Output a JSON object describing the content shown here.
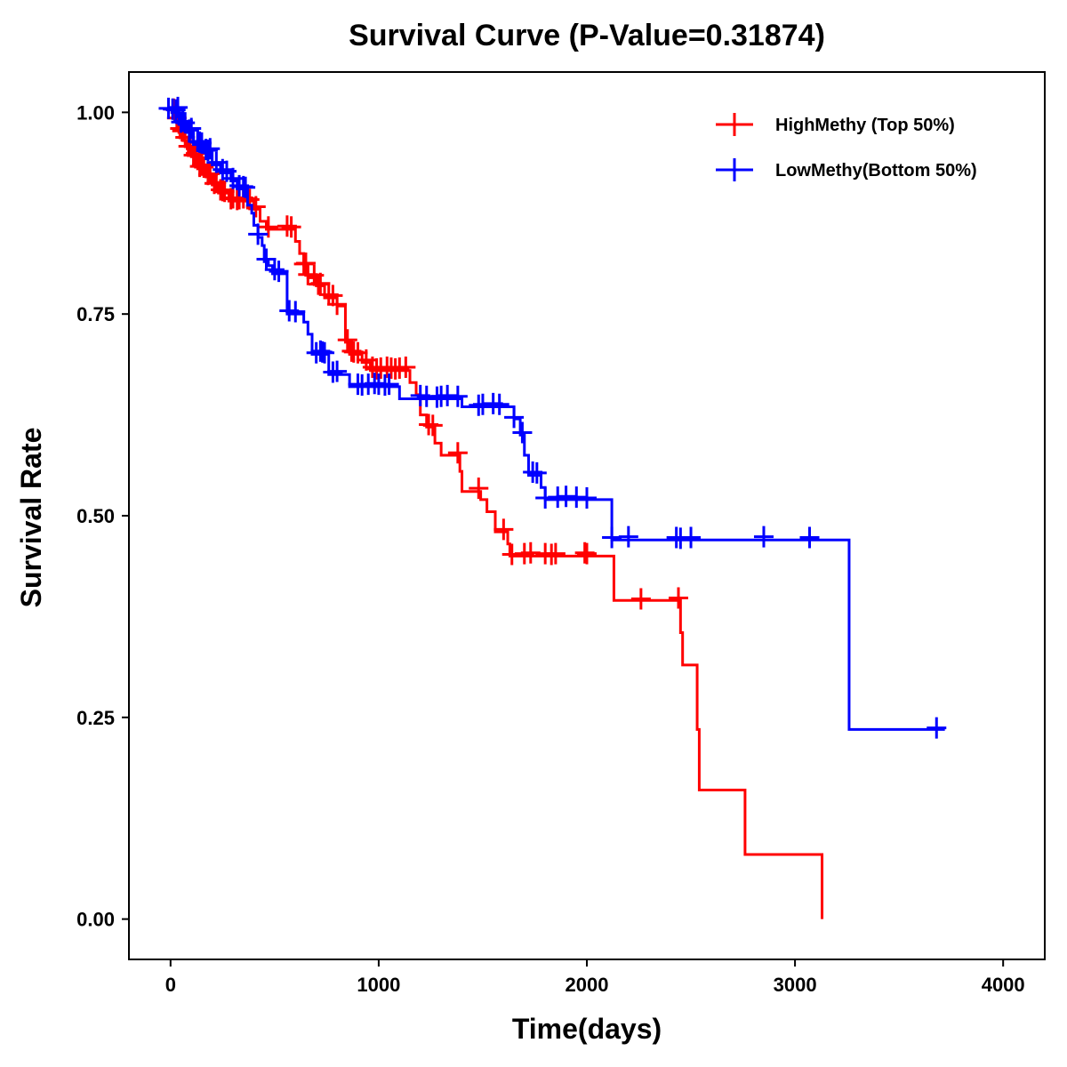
{
  "chart_data": {
    "type": "line",
    "subtype": "kaplan-meier step",
    "title": "Survival Curve (P-Value=0.31874)",
    "xlabel": "Time(days)",
    "ylabel": "Survival Rate",
    "xlim": [
      -200,
      4200
    ],
    "ylim": [
      -0.05,
      1.05
    ],
    "x_ticks": [
      0,
      1000,
      2000,
      3000,
      4000
    ],
    "x_tick_labels": [
      "0",
      "1000",
      "2000",
      "3000",
      "4000"
    ],
    "y_ticks": [
      0,
      0.25,
      0.5,
      0.75,
      1.0
    ],
    "y_tick_labels": [
      "0.00",
      "0.25",
      "0.50",
      "0.75",
      "1.00"
    ],
    "grid": false,
    "legend_position": "top-right",
    "series": [
      {
        "name": "HighMethy (Top 50%)",
        "color": "#ff0000",
        "steps": [
          [
            0,
            1.0
          ],
          [
            20,
            0.99
          ],
          [
            40,
            0.975
          ],
          [
            60,
            0.965
          ],
          [
            80,
            0.955
          ],
          [
            100,
            0.945
          ],
          [
            130,
            0.93
          ],
          [
            170,
            0.92
          ],
          [
            200,
            0.91
          ],
          [
            230,
            0.9
          ],
          [
            280,
            0.89
          ],
          [
            400,
            0.88
          ],
          [
            430,
            0.865
          ],
          [
            460,
            0.855
          ],
          [
            600,
            0.84
          ],
          [
            620,
            0.825
          ],
          [
            640,
            0.81
          ],
          [
            660,
            0.795
          ],
          [
            700,
            0.785
          ],
          [
            740,
            0.77
          ],
          [
            800,
            0.76
          ],
          [
            840,
            0.715
          ],
          [
            860,
            0.7
          ],
          [
            920,
            0.69
          ],
          [
            960,
            0.68
          ],
          [
            1150,
            0.665
          ],
          [
            1180,
            0.65
          ],
          [
            1200,
            0.625
          ],
          [
            1230,
            0.61
          ],
          [
            1270,
            0.59
          ],
          [
            1300,
            0.575
          ],
          [
            1390,
            0.555
          ],
          [
            1400,
            0.53
          ],
          [
            1490,
            0.52
          ],
          [
            1520,
            0.505
          ],
          [
            1560,
            0.48
          ],
          [
            1620,
            0.465
          ],
          [
            1630,
            0.45
          ],
          [
            2130,
            0.395
          ],
          [
            2450,
            0.355
          ],
          [
            2460,
            0.315
          ],
          [
            2530,
            0.235
          ],
          [
            2540,
            0.16
          ],
          [
            2760,
            0.08
          ],
          [
            3130,
            0.0
          ]
        ],
        "end_x": 3130,
        "censor_x": [
          15,
          30,
          45,
          55,
          70,
          85,
          95,
          110,
          120,
          140,
          150,
          160,
          180,
          190,
          210,
          220,
          240,
          250,
          260,
          290,
          300,
          320,
          330,
          350,
          370,
          380,
          410,
          470,
          560,
          580,
          640,
          650,
          660,
          690,
          710,
          720,
          760,
          780,
          800,
          850,
          870,
          880,
          900,
          940,
          970,
          990,
          1010,
          1040,
          1060,
          1080,
          1100,
          1130,
          1240,
          1260,
          1380,
          1480,
          1600,
          1640,
          1700,
          1730,
          1800,
          1830,
          1850,
          1990,
          2000,
          2260,
          2440
        ],
        "censor_pad": [
          0.004,
          0.003,
          0.005,
          0.002,
          0.004,
          0.003,
          0.003,
          0.002,
          0.004,
          0.003,
          0.005,
          0.002,
          0.003,
          0.004,
          0.002,
          0.003,
          0.004,
          0.003,
          0.002,
          0.003,
          0.004,
          0.002,
          0.003,
          0.004,
          0.003,
          0.002,
          0.003,
          0.003,
          0.004,
          0.003,
          0.002,
          0.003,
          0.004,
          0.003,
          0.002,
          0.003,
          0.004,
          0.003,
          0.002,
          0.003,
          0.004,
          0.003,
          0.002,
          0.003,
          0.004,
          0.002,
          0.003,
          0.004,
          0.003,
          0.002,
          0.003,
          0.004,
          0.003,
          0.002,
          0.003,
          0.004,
          0.003,
          0.002,
          0.003,
          0.004,
          0.003,
          0.002,
          0.003,
          0.004,
          0.003,
          0.002,
          0.003
        ]
      },
      {
        "name": "LowMethy(Bottom 50%)",
        "color": "#0000ff",
        "steps": [
          [
            0,
            1.0
          ],
          [
            40,
            0.985
          ],
          [
            80,
            0.975
          ],
          [
            110,
            0.96
          ],
          [
            160,
            0.95
          ],
          [
            200,
            0.935
          ],
          [
            240,
            0.925
          ],
          [
            290,
            0.915
          ],
          [
            320,
            0.905
          ],
          [
            370,
            0.885
          ],
          [
            390,
            0.875
          ],
          [
            400,
            0.86
          ],
          [
            420,
            0.845
          ],
          [
            440,
            0.835
          ],
          [
            450,
            0.815
          ],
          [
            470,
            0.81
          ],
          [
            490,
            0.8
          ],
          [
            560,
            0.75
          ],
          [
            640,
            0.74
          ],
          [
            660,
            0.725
          ],
          [
            680,
            0.7
          ],
          [
            760,
            0.675
          ],
          [
            860,
            0.66
          ],
          [
            1100,
            0.645
          ],
          [
            1400,
            0.635
          ],
          [
            1650,
            0.62
          ],
          [
            1680,
            0.6
          ],
          [
            1700,
            0.575
          ],
          [
            1720,
            0.55
          ],
          [
            1780,
            0.535
          ],
          [
            1800,
            0.52
          ],
          [
            2120,
            0.47
          ],
          [
            3260,
            0.235
          ]
        ],
        "end_x": 3720,
        "censor_x": [
          -10,
          10,
          25,
          35,
          50,
          60,
          70,
          90,
          100,
          130,
          140,
          150,
          170,
          180,
          190,
          220,
          250,
          270,
          300,
          330,
          350,
          360,
          420,
          460,
          500,
          520,
          570,
          600,
          700,
          720,
          730,
          740,
          780,
          800,
          900,
          920,
          950,
          980,
          1000,
          1030,
          1050,
          1200,
          1230,
          1280,
          1300,
          1330,
          1380,
          1480,
          1500,
          1550,
          1580,
          1650,
          1690,
          1740,
          1760,
          1800,
          1860,
          1900,
          1950,
          2000,
          2120,
          2200,
          2430,
          2450,
          2500,
          2850,
          3070,
          3680
        ],
        "censor_pad": [
          0.005,
          0.004,
          0.003,
          0.006,
          0.003,
          0.004,
          0.002,
          0.003,
          0.005,
          0.004,
          0.003,
          0.002,
          0.004,
          0.003,
          0.005,
          0.003,
          0.004,
          0.002,
          0.003,
          0.004,
          0.003,
          0.002,
          0.004,
          0.003,
          0.005,
          0.003,
          0.004,
          0.003,
          0.002,
          0.004,
          0.003,
          0.002,
          0.003,
          0.004,
          0.003,
          0.002,
          0.003,
          0.004,
          0.003,
          0.002,
          0.003,
          0.004,
          0.003,
          0.002,
          0.003,
          0.004,
          0.003,
          0.002,
          0.003,
          0.004,
          0.003,
          0.002,
          0.003,
          0.004,
          0.003,
          0.002,
          0.003,
          0.004,
          0.003,
          0.002,
          0.003,
          0.004,
          0.003,
          0.002,
          0.003,
          0.004,
          0.003,
          0.002
        ]
      }
    ]
  }
}
